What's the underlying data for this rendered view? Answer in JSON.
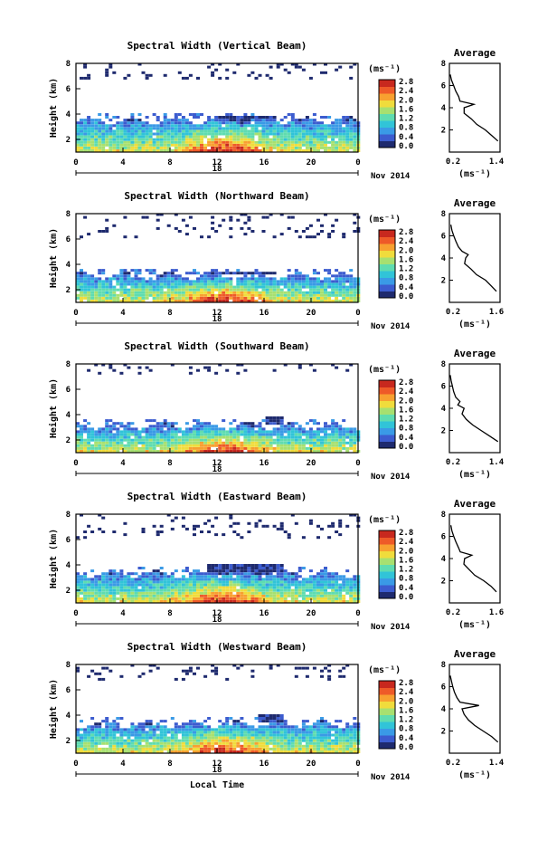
{
  "figure": {
    "xlabel": "Local Time",
    "date_label": "Nov 2014",
    "day_label": "18",
    "avg_title": "Average",
    "avg_xlabel": "(ms⁻¹)",
    "cb_unit": "(ms⁻¹)",
    "ylabel": "Height (km)",
    "cb_ticks": [
      "0.0",
      "0.4",
      "0.8",
      "1.2",
      "1.6",
      "2.0",
      "2.4",
      "2.8"
    ],
    "time_ticks": [
      "0",
      "4",
      "8",
      "12",
      "16",
      "20",
      "0"
    ],
    "height_ticks": [
      "2",
      "4",
      "6",
      "8"
    ],
    "colorscale": [
      "#1e2a6e",
      "#3c5ccf",
      "#3a9ae6",
      "#31c4d8",
      "#5fdcb0",
      "#a7e070",
      "#f0dc3c",
      "#f8a030",
      "#ee5a28",
      "#c8281e"
    ]
  },
  "chart_data": [
    {
      "type": "heatmap",
      "title": "Spectral Width (Vertical Beam)",
      "variable": "spectral width",
      "units": "m/s",
      "x_range": [
        0,
        24
      ],
      "y_range": [
        1,
        8
      ],
      "color_range": [
        0.0,
        2.8
      ],
      "lower_layer_top_km": 3.4,
      "elevated_layer": {
        "time_start": 12,
        "time_end": 17,
        "base_km": 3.2,
        "top_km": 3.8
      },
      "upper_echoes_km": [
        6.5,
        8.0
      ],
      "profile": {
        "title": "Average",
        "xlim": [
          0.2,
          1.4
        ],
        "xticks": [
          "0.2",
          "1.4"
        ],
        "ylim": [
          0,
          8
        ],
        "height": [
          1.0,
          1.5,
          2.0,
          2.5,
          3.0,
          3.5,
          4.0,
          4.3,
          4.6,
          5.0,
          5.5,
          6.0,
          6.5,
          7.0
        ],
        "width": [
          1.35,
          1.2,
          1.05,
          0.85,
          0.72,
          0.55,
          0.55,
          0.78,
          0.45,
          0.42,
          0.35,
          0.3,
          0.25,
          0.22
        ]
      }
    },
    {
      "type": "heatmap",
      "title": "Spectral Width (Northward Beam)",
      "variable": "spectral width",
      "units": "m/s",
      "x_range": [
        0,
        24
      ],
      "y_range": [
        1,
        8
      ],
      "color_range": [
        0.0,
        2.8
      ],
      "lower_layer_top_km": 3.0,
      "elevated_layer": {
        "time_start": 11.5,
        "time_end": 17,
        "base_km": 3.0,
        "top_km": 3.4
      },
      "upper_echoes_km": [
        6.0,
        8.0
      ],
      "profile": {
        "title": "Average",
        "xlim": [
          0.2,
          1.6
        ],
        "xticks": [
          "0.2",
          "1.6"
        ],
        "ylim": [
          0,
          8
        ],
        "height": [
          1.0,
          1.5,
          2.0,
          2.5,
          3.0,
          3.5,
          4.0,
          4.3,
          4.6,
          5.0,
          5.5,
          6.0,
          6.5,
          7.0
        ],
        "width": [
          1.5,
          1.35,
          1.2,
          0.95,
          0.8,
          0.62,
          0.65,
          0.72,
          0.55,
          0.45,
          0.38,
          0.32,
          0.27,
          0.24
        ]
      }
    },
    {
      "type": "heatmap",
      "title": "Spectral Width (Southward Beam)",
      "variable": "spectral width",
      "units": "m/s",
      "x_range": [
        0,
        24
      ],
      "y_range": [
        1,
        8
      ],
      "color_range": [
        0.0,
        2.8
      ],
      "lower_layer_top_km": 3.0,
      "elevated_layer": {
        "time_start": 16,
        "time_end": 17.5,
        "base_km": 3.2,
        "top_km": 3.8
      },
      "upper_echoes_km": [
        7.0,
        8.0
      ],
      "profile": {
        "title": "Average",
        "xlim": [
          0.2,
          1.4
        ],
        "xticks": [
          "0.2",
          "1.4"
        ],
        "ylim": [
          0,
          8
        ],
        "height": [
          1.0,
          1.5,
          2.0,
          2.5,
          3.0,
          3.5,
          4.0,
          4.3,
          4.6,
          5.0,
          5.5,
          6.0,
          6.5,
          7.0
        ],
        "width": [
          1.35,
          1.15,
          0.95,
          0.75,
          0.6,
          0.5,
          0.55,
          0.4,
          0.45,
          0.35,
          0.3,
          0.27,
          0.24,
          0.22
        ]
      }
    },
    {
      "type": "heatmap",
      "title": "Spectral Width (Eastward Beam)",
      "variable": "spectral width",
      "units": "m/s",
      "x_range": [
        0,
        24
      ],
      "y_range": [
        1,
        8
      ],
      "color_range": [
        0.0,
        2.8
      ],
      "lower_layer_top_km": 3.2,
      "elevated_layer": {
        "time_start": 11,
        "time_end": 17.5,
        "base_km": 3.2,
        "top_km": 3.9
      },
      "upper_echoes_km": [
        6.0,
        8.0
      ],
      "profile": {
        "title": "Average",
        "xlim": [
          0.2,
          1.6
        ],
        "xticks": [
          "0.2",
          "1.6"
        ],
        "ylim": [
          0,
          8
        ],
        "height": [
          1.0,
          1.5,
          2.0,
          2.5,
          3.0,
          3.5,
          4.0,
          4.3,
          4.6,
          5.0,
          5.5,
          6.0,
          6.5,
          7.0
        ],
        "width": [
          1.5,
          1.35,
          1.15,
          0.9,
          0.75,
          0.6,
          0.62,
          0.82,
          0.5,
          0.45,
          0.38,
          0.32,
          0.27,
          0.24
        ]
      }
    },
    {
      "type": "heatmap",
      "title": "Spectral Width (Westward Beam)",
      "variable": "spectral width",
      "units": "m/s",
      "x_range": [
        0,
        24
      ],
      "y_range": [
        1,
        8
      ],
      "color_range": [
        0.0,
        2.8
      ],
      "lower_layer_top_km": 3.2,
      "elevated_layer": {
        "time_start": 15.5,
        "time_end": 17.5,
        "base_km": 3.4,
        "top_km": 4.0
      },
      "upper_echoes_km": [
        6.5,
        8.0
      ],
      "profile": {
        "title": "Average",
        "xlim": [
          0.2,
          1.4
        ],
        "xticks": [
          "0.2",
          "1.4"
        ],
        "ylim": [
          0,
          8
        ],
        "height": [
          1.0,
          1.5,
          2.0,
          2.5,
          3.0,
          3.5,
          4.0,
          4.3,
          4.6,
          5.0,
          5.5,
          6.0,
          6.5,
          7.0
        ],
        "width": [
          1.35,
          1.2,
          1.0,
          0.8,
          0.65,
          0.55,
          0.5,
          0.9,
          0.45,
          0.38,
          0.32,
          0.28,
          0.25,
          0.22
        ]
      }
    }
  ]
}
